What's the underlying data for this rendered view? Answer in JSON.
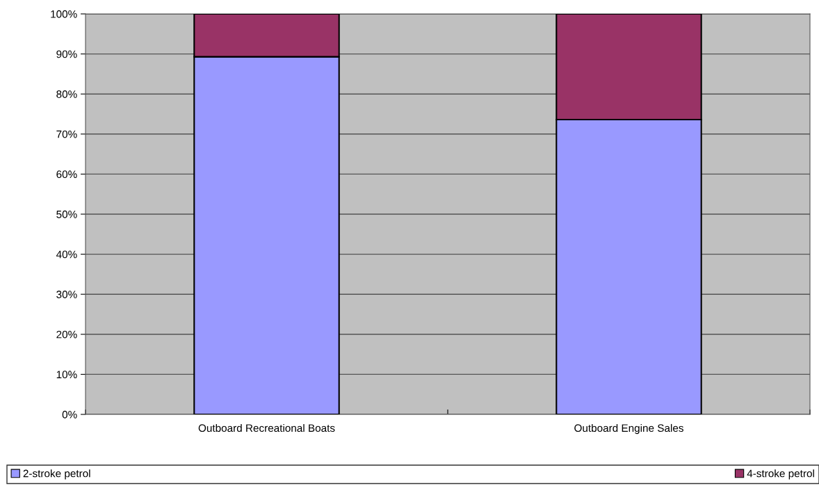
{
  "chart_data": {
    "type": "bar",
    "stacked": true,
    "categories": [
      "Outboard Recreational Boats",
      "Outboard Engine Sales"
    ],
    "series": [
      {
        "name": "2-stroke petrol",
        "color": "#9999ff",
        "values": [
          89.3,
          73.6
        ]
      },
      {
        "name": "4-stroke petrol",
        "color": "#993366",
        "values": [
          10.7,
          26.4
        ]
      }
    ],
    "ylim": [
      0,
      100
    ],
    "yticks": [
      {
        "value": 0,
        "label": "0%"
      },
      {
        "value": 10,
        "label": "10%"
      },
      {
        "value": 20,
        "label": "20%"
      },
      {
        "value": 30,
        "label": "30%"
      },
      {
        "value": 40,
        "label": "40%"
      },
      {
        "value": 50,
        "label": "50%"
      },
      {
        "value": 60,
        "label": "60%"
      },
      {
        "value": 70,
        "label": "70%"
      },
      {
        "value": 80,
        "label": "80%"
      },
      {
        "value": 90,
        "label": "90%"
      },
      {
        "value": 100,
        "label": "100%"
      }
    ],
    "grid": "y",
    "legend": "bottom"
  }
}
